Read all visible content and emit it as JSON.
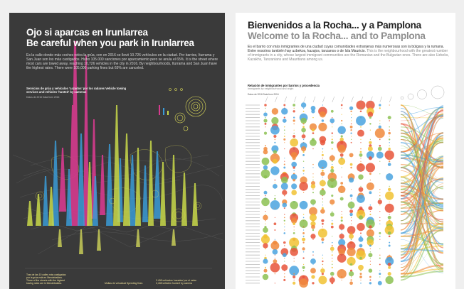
{
  "poster_left": {
    "title_es": "Ojo si aparcas en Irunlarrea",
    "title_en": "Be careful when you park in Irunlarrea",
    "intro": "Es la calle donde más coches retira la grúa, con en 2016 se llevó 10.726 vehículos en la ciudad. Por barrios, Iturrama y San Juan son los más castigados. Hubo 105.000 sanciones por aparcamiento pero se anula el 65%. It is the street where most cars are towed away, reaching 10,726 vehicles in the city in 2016. By neighbourhoods, Iturrama and San Juan have the highest rates. There were 105,000 parking fines but 65% are canceled.",
    "subtitle": "Servicios de grúa y vehículos 'cazados' por los radares Vehicle towing services and vehicles 'hunted' by cameras",
    "note": "Datos de 2016 Data from 2016",
    "footer_1": "Tras de las 10 calles más castigadas por la grúa está en Mendebaldea. Three of the streets with the highest towing rates are in Mendebaldea.",
    "footer_2": "Multas de velocidad Speeding fines",
    "footer_3": "2.408 vehículos 'cazados' por el radar 2,408 vehicles 'hunted' by camera",
    "colors": {
      "bg": "#3a3a3a",
      "magenta": "#d63a8e",
      "blue": "#3b9bd6",
      "yellow": "#e2e05a"
    }
  },
  "poster_right": {
    "title_es": "Bienvenidos a la Rocha... y a Pamplona",
    "title_en": "Welcome to la Rocha... and to Pamplona",
    "intro_es": "Es el barrio con más inmigrantes de una ciudad cuyas comunidades extranjeras más numerosas son la búlgara y la rumana. Entre nosotros también hay uzbekos, kazajos, tanzanos o de Isla Mauricio.",
    "intro_en": "This is the neighbourhood with the greatest number of immigrants in a city, whose largest immigrant communities are the Romanian and the Bulgarian ones. There are also Uzbeks, Kazakhs, Tanzanians and Mauritians among us.",
    "subtitle": "Relación de inmigrantes por barrios y procedencia",
    "subtitle_en": "Immigrants by neighbourhood and origin",
    "note": "Datos de 2016 Data from 2016",
    "colors": {
      "red": "#e8553a",
      "yellow": "#f1c232",
      "green": "#8cc152",
      "blue": "#4aa3df",
      "orange": "#f08a3c"
    }
  }
}
